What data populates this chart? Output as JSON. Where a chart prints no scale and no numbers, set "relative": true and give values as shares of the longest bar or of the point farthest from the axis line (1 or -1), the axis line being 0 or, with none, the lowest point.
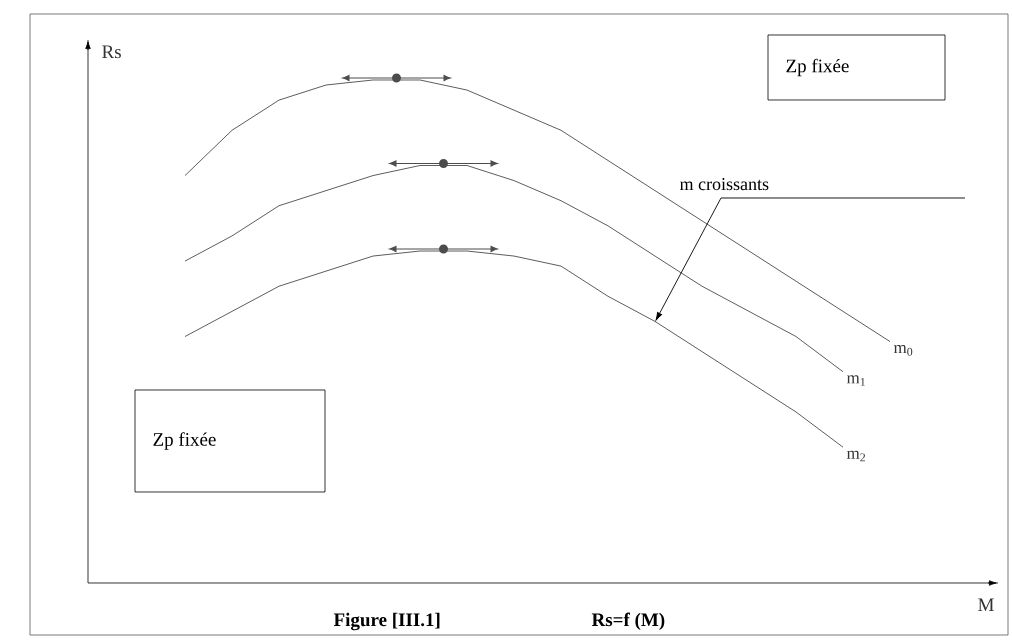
{
  "chart_data": {
    "type": "line",
    "relative": true,
    "xlabel": "M",
    "ylabel": "Rs",
    "categories": [
      null,
      null,
      null,
      null,
      null,
      null,
      null,
      null,
      null,
      null,
      null,
      null,
      null,
      null,
      null,
      null
    ],
    "series": [
      {
        "name": "m$_{0}$",
        "color": "#333333",
        "values": [
          0.81,
          0.9,
          0.96,
          0.99,
          1,
          1,
          0.98,
          0.94,
          0.9,
          0.84,
          0.78,
          0.72,
          0.66,
          0.6,
          0.54,
          0.48
        ]
      },
      {
        "name": "m$_{1}$",
        "color": "#333333",
        "values": [
          0.64,
          0.69,
          0.75,
          0.78,
          0.81,
          0.83,
          0.83,
          0.8,
          0.76,
          0.71,
          0.65,
          0.59,
          0.54,
          0.49,
          0.42,
          null
        ]
      },
      {
        "name": "m$_{2}$",
        "color": "#333333",
        "values": [
          0.49,
          0.54,
          0.59,
          0.62,
          0.65,
          0.66,
          0.66,
          0.65,
          0.63,
          0.57,
          0.52,
          0.46,
          0.4,
          0.34,
          0.27,
          null
        ]
      }
    ],
    "annotations": [
      "Zp fixée",
      "Zp fixée",
      "m croissants",
      "Figure [III.1]",
      "Rs=f (M)"
    ]
  }
}
